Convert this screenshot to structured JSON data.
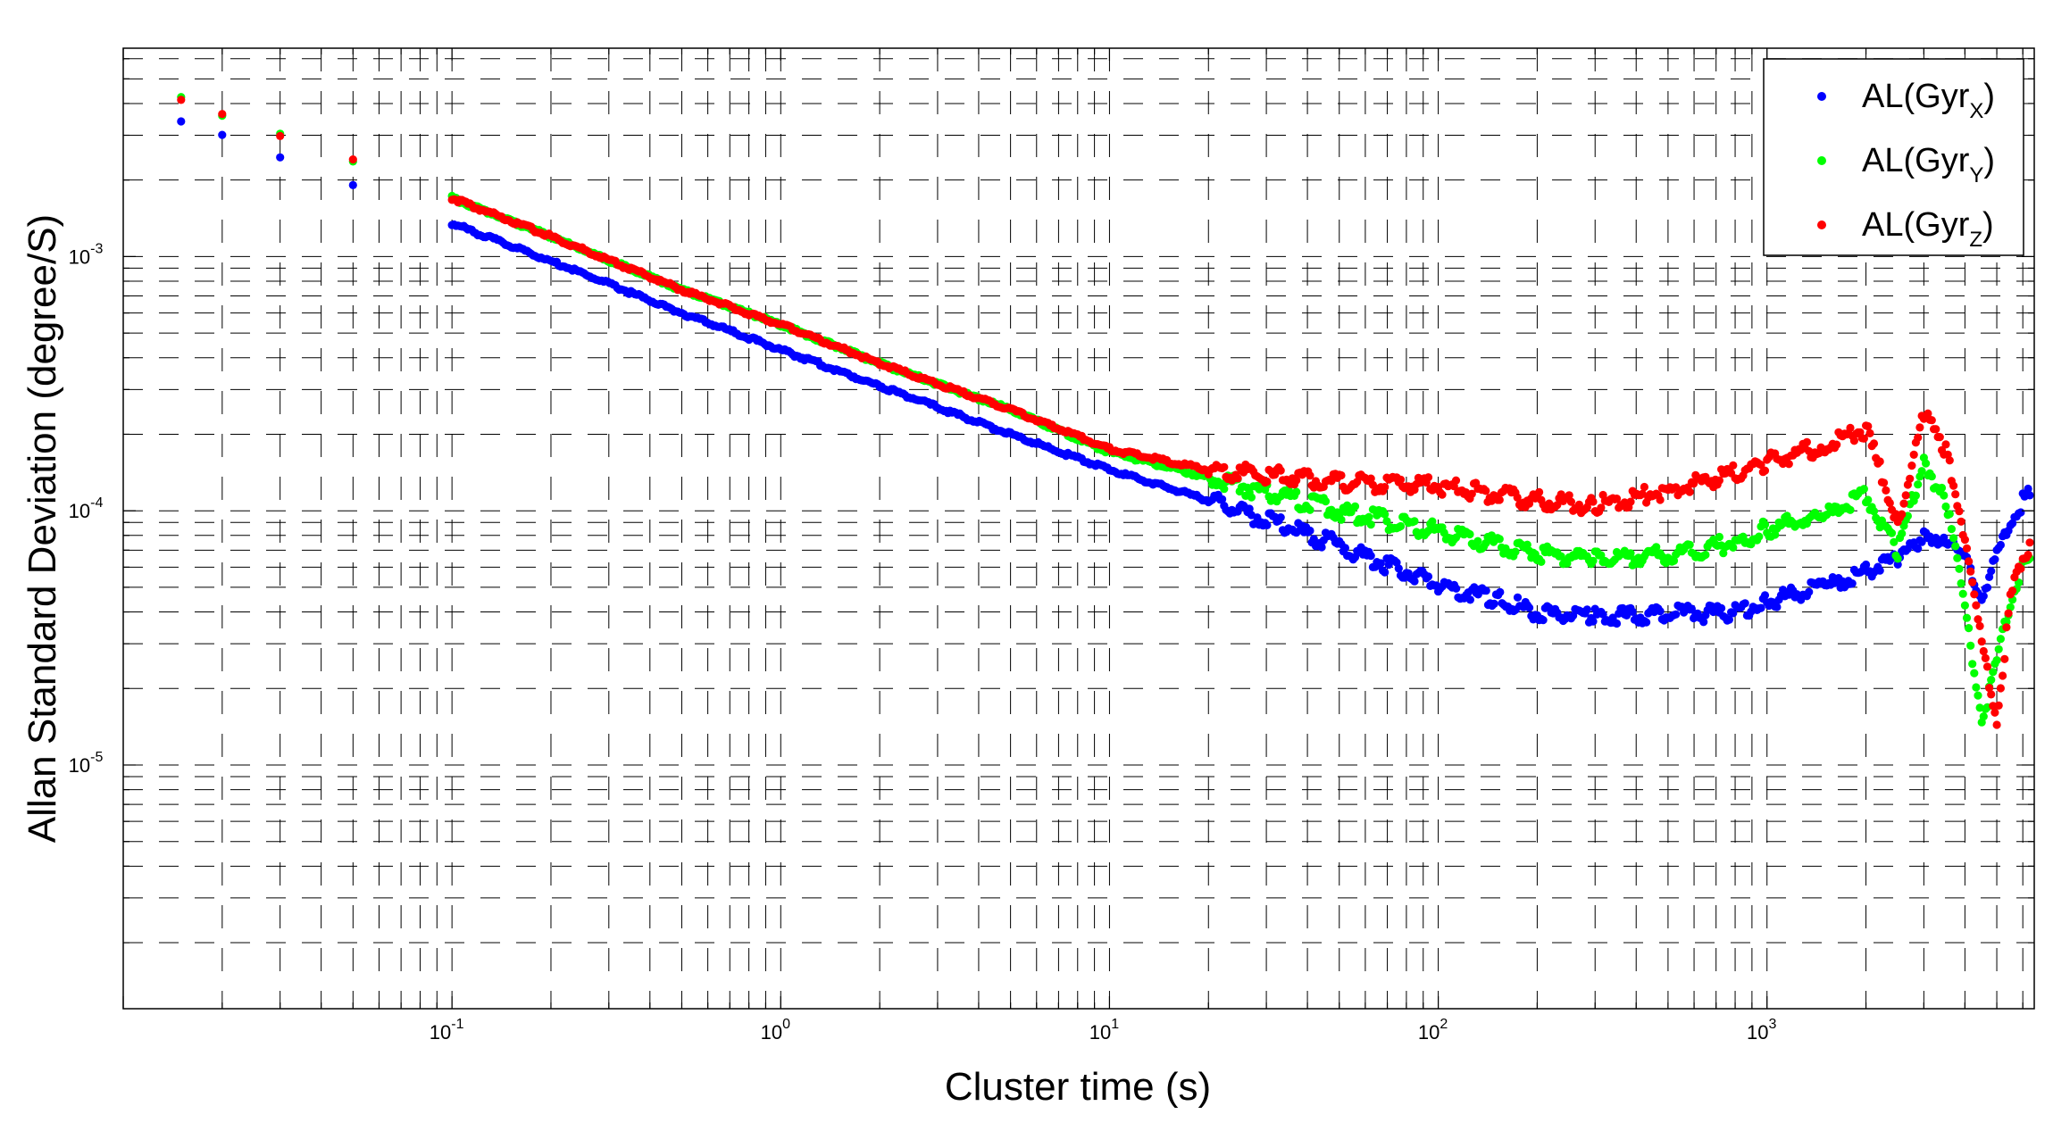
{
  "chart_data": {
    "type": "scatter",
    "title": "",
    "xlabel": "Cluster time (s)",
    "ylabel": "Allan Standard Deviation (degree/S)",
    "x_scale": "log",
    "y_scale": "log",
    "xlim": [
      0.01,
      6500
    ],
    "ylim": [
      1.1e-06,
      0.0066
    ],
    "grid": true,
    "grid_style": "dashed",
    "legend_position": "top-right",
    "x_ticks": [
      {
        "base": "10",
        "exp": "-1",
        "value": 0.1
      },
      {
        "base": "10",
        "exp": "0",
        "value": 1
      },
      {
        "base": "10",
        "exp": "1",
        "value": 10
      },
      {
        "base": "10",
        "exp": "2",
        "value": 100
      },
      {
        "base": "10",
        "exp": "3",
        "value": 1000
      }
    ],
    "y_ticks": [
      {
        "base": "10",
        "exp": "-5",
        "value": 1e-05
      },
      {
        "base": "10",
        "exp": "-4",
        "value": 0.0001
      },
      {
        "base": "10",
        "exp": "-3",
        "value": 0.001
      }
    ],
    "series": [
      {
        "name": "AL(GyrX)",
        "label_main": "AL(Gyr",
        "label_sub": "X",
        "color": "#0000ff",
        "points": [
          [
            0.015,
            0.0034
          ],
          [
            0.02,
            0.003
          ],
          [
            0.03,
            0.0025
          ],
          [
            0.05,
            0.0019
          ],
          [
            0.1,
            0.00135
          ],
          [
            0.2,
            0.00096
          ],
          [
            0.5,
            0.0006
          ],
          [
            1,
            0.00043
          ],
          [
            2,
            0.00031
          ],
          [
            5,
            0.0002
          ],
          [
            10,
            0.000145
          ],
          [
            20,
            0.00011
          ],
          [
            50,
            7.3e-05
          ],
          [
            100,
            5.1e-05
          ],
          [
            150,
            4.5e-05
          ],
          [
            200,
            4e-05
          ],
          [
            300,
            3.8e-05
          ],
          [
            500,
            3.9e-05
          ],
          [
            800,
            4e-05
          ],
          [
            1000,
            4.4e-05
          ],
          [
            1500,
            5e-05
          ],
          [
            2000,
            5.8e-05
          ],
          [
            2500,
            6.5e-05
          ],
          [
            3000,
            8e-05
          ],
          [
            3500,
            7.8e-05
          ],
          [
            4000,
            6.5e-05
          ],
          [
            4500,
            4.7e-05
          ],
          [
            5000,
            6.5e-05
          ],
          [
            5500,
            9e-05
          ],
          [
            6000,
            0.000108
          ],
          [
            6300,
            0.000115
          ]
        ]
      },
      {
        "name": "AL(GyrY)",
        "label_main": "AL(Gyr",
        "label_sub": "Y",
        "color": "#00ff00",
        "points": [
          [
            0.015,
            0.0042
          ],
          [
            0.02,
            0.0036
          ],
          [
            0.03,
            0.003
          ],
          [
            0.05,
            0.0024
          ],
          [
            0.1,
            0.0017
          ],
          [
            0.2,
            0.0012
          ],
          [
            0.5,
            0.00074
          ],
          [
            1,
            0.00054
          ],
          [
            2,
            0.00038
          ],
          [
            5,
            0.00025
          ],
          [
            10,
            0.00017
          ],
          [
            20,
            0.000135
          ],
          [
            50,
            0.0001
          ],
          [
            100,
            8.3e-05
          ],
          [
            200,
            6.8e-05
          ],
          [
            300,
            6.5e-05
          ],
          [
            500,
            6.7e-05
          ],
          [
            800,
            7.5e-05
          ],
          [
            1000,
            8.5e-05
          ],
          [
            1500,
            9.5e-05
          ],
          [
            2000,
            0.000115
          ],
          [
            2500,
            7e-05
          ],
          [
            3000,
            0.000155
          ],
          [
            3500,
            0.00011
          ],
          [
            4000,
            4.2e-05
          ],
          [
            4500,
            1.5e-05
          ],
          [
            5000,
            2.5e-05
          ],
          [
            5500,
            4.5e-05
          ],
          [
            6000,
            6e-05
          ],
          [
            6300,
            6.5e-05
          ]
        ]
      },
      {
        "name": "AL(GyrZ)",
        "label_main": "AL(Gyr",
        "label_sub": "Z",
        "color": "#ff0000",
        "points": [
          [
            0.015,
            0.0042
          ],
          [
            0.02,
            0.0036
          ],
          [
            0.03,
            0.003
          ],
          [
            0.05,
            0.0024
          ],
          [
            0.1,
            0.0017
          ],
          [
            0.2,
            0.0012
          ],
          [
            0.5,
            0.00074
          ],
          [
            1,
            0.00054
          ],
          [
            2,
            0.00038
          ],
          [
            5,
            0.00025
          ],
          [
            10,
            0.000175
          ],
          [
            20,
            0.000145
          ],
          [
            50,
            0.00013
          ],
          [
            100,
            0.000125
          ],
          [
            200,
            0.00011
          ],
          [
            300,
            0.000105
          ],
          [
            500,
            0.00012
          ],
          [
            800,
            0.00014
          ],
          [
            1000,
            0.000155
          ],
          [
            1500,
            0.00018
          ],
          [
            2000,
            0.00021
          ],
          [
            2500,
            9e-05
          ],
          [
            3000,
            0.00024
          ],
          [
            3500,
            0.00017
          ],
          [
            4000,
            8e-05
          ],
          [
            4500,
            3e-05
          ],
          [
            5000,
            1.5e-05
          ],
          [
            5500,
            4.5e-05
          ],
          [
            6000,
            6.5e-05
          ],
          [
            6300,
            7.5e-05
          ]
        ]
      }
    ]
  }
}
